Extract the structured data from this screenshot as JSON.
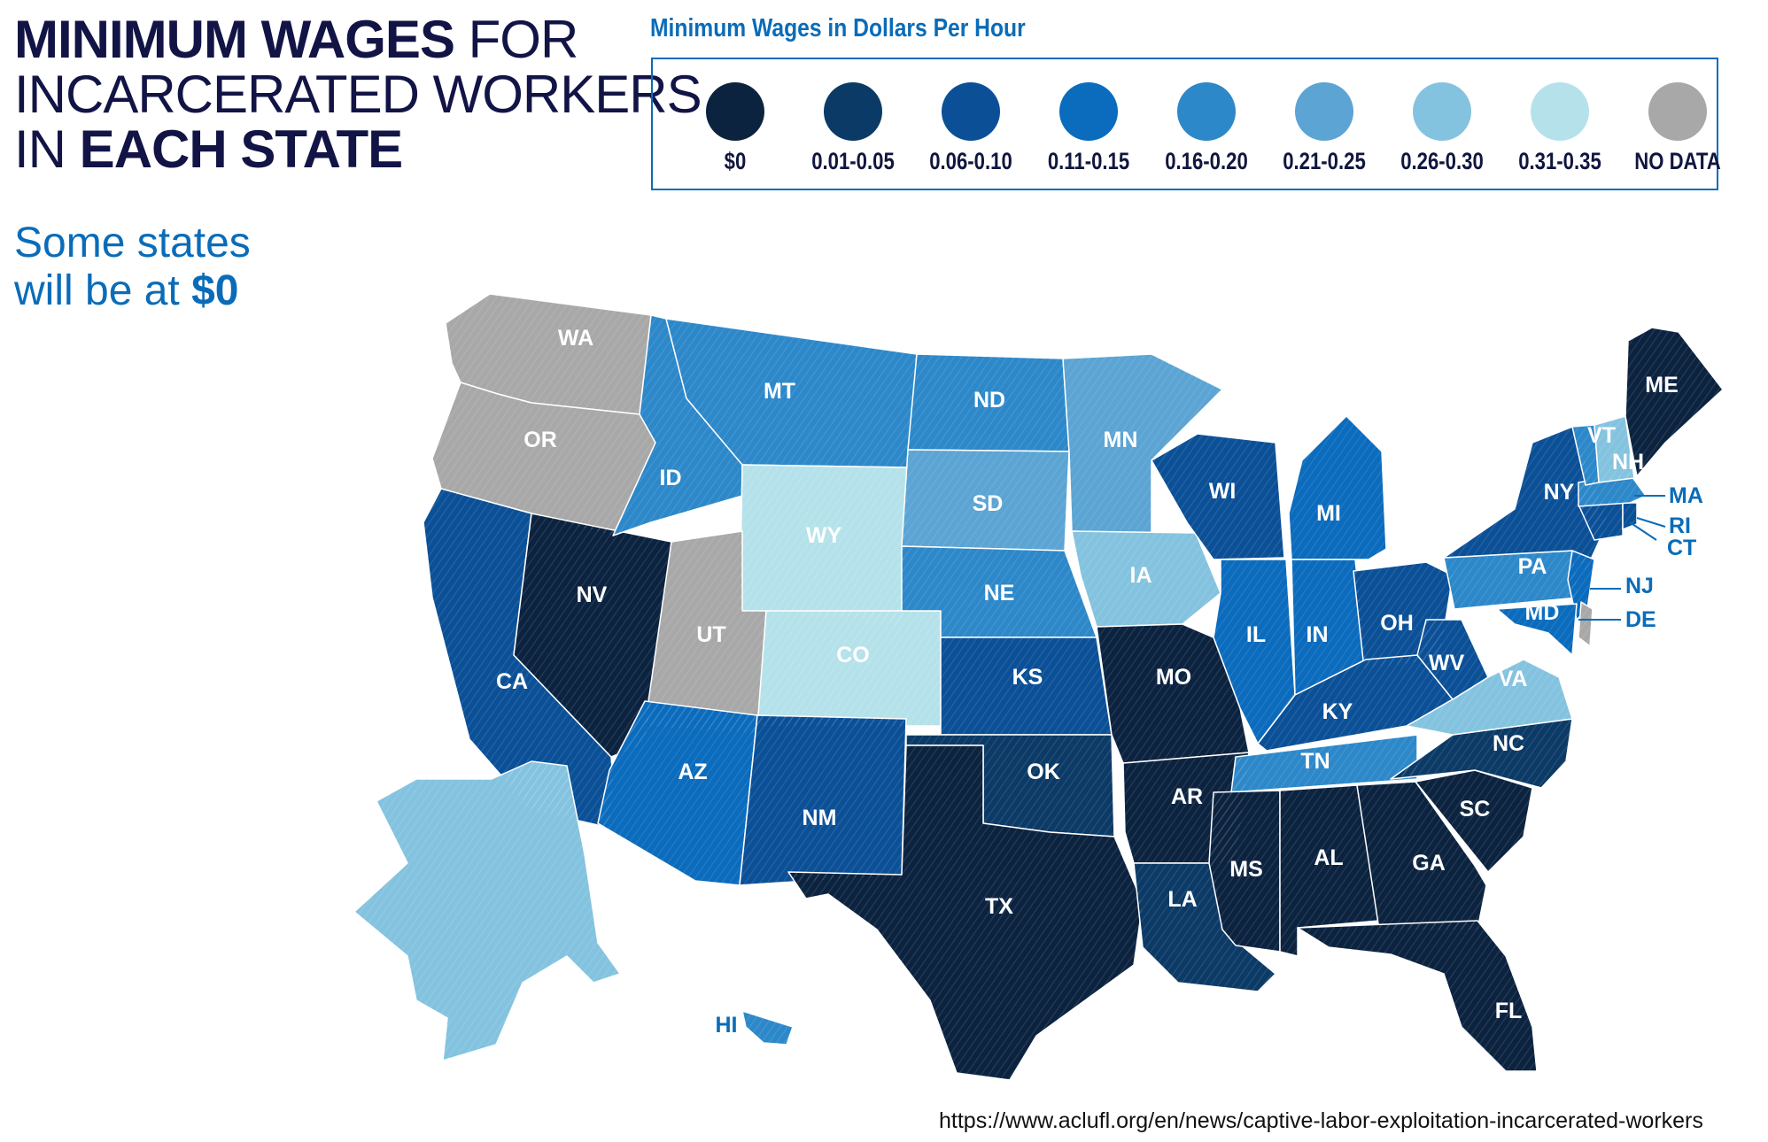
{
  "title": {
    "part1_bold": "MINIMUM WAGES",
    "part1_rest": " FOR",
    "line2": "INCARCERATED WORKERS",
    "line3_pre": "IN ",
    "line3_bold": "EACH STATE"
  },
  "subtitle": {
    "line1": "Some states",
    "line2_pre": "will be at ",
    "line2_bold": "$0"
  },
  "legend": {
    "title": "Minimum Wages in Dollars Per Hour",
    "items": [
      {
        "label": "$0",
        "color": "#0c2340"
      },
      {
        "label": "0.01-0.05",
        "color": "#0c3a66"
      },
      {
        "label": "0.06-0.10",
        "color": "#0b5097"
      },
      {
        "label": "0.11-0.15",
        "color": "#0b6bbd"
      },
      {
        "label": "0.16-0.20",
        "color": "#2d88c9"
      },
      {
        "label": "0.21-0.25",
        "color": "#5ba4d3"
      },
      {
        "label": "0.26-0.30",
        "color": "#84c3df"
      },
      {
        "label": "0.31-0.35",
        "color": "#b5e2ea"
      },
      {
        "label": "NO DATA",
        "color": "#a8a8a8"
      }
    ]
  },
  "states": {
    "WA": "NO DATA",
    "OR": "NO DATA",
    "CA": "0.06-0.10",
    "NV": "$0",
    "ID": "0.16-0.20",
    "MT": "0.16-0.20",
    "WY": "0.31-0.35",
    "UT": "NO DATA",
    "CO": "0.31-0.35",
    "AZ": "0.11-0.15",
    "NM": "0.06-0.10",
    "ND": "0.16-0.20",
    "SD": "0.21-0.25",
    "NE": "0.16-0.20",
    "KS": "0.06-0.10",
    "OK": "0.01-0.05",
    "TX": "$0",
    "MN": "0.21-0.25",
    "IA": "0.26-0.30",
    "MO": "$0",
    "AR": "$0",
    "LA": "0.01-0.05",
    "WI": "0.06-0.10",
    "IL": "0.11-0.15",
    "MI": "0.11-0.15",
    "IN": "0.11-0.15",
    "OH": "0.06-0.10",
    "KY": "0.06-0.10",
    "TN": "0.16-0.20",
    "MS": "$0",
    "AL": "$0",
    "GA": "$0",
    "FL": "$0",
    "SC": "$0",
    "NC": "0.01-0.05",
    "VA": "0.26-0.30",
    "WV": "0.06-0.10",
    "PA": "0.16-0.20",
    "NY": "0.06-0.10",
    "NJ": "0.11-0.15",
    "DE": "NO DATA",
    "MD": "0.11-0.15",
    "CT": "0.06-0.10",
    "RI": "0.06-0.10",
    "MA": "0.16-0.20",
    "VT": "0.16-0.20",
    "NH": "0.26-0.30",
    "ME": "$0",
    "AK": "0.26-0.30",
    "HI": "0.16-0.20"
  },
  "source": "https://www.aclufl.org/en/news/captive-labor-exploitation-incarcerated-workers"
}
